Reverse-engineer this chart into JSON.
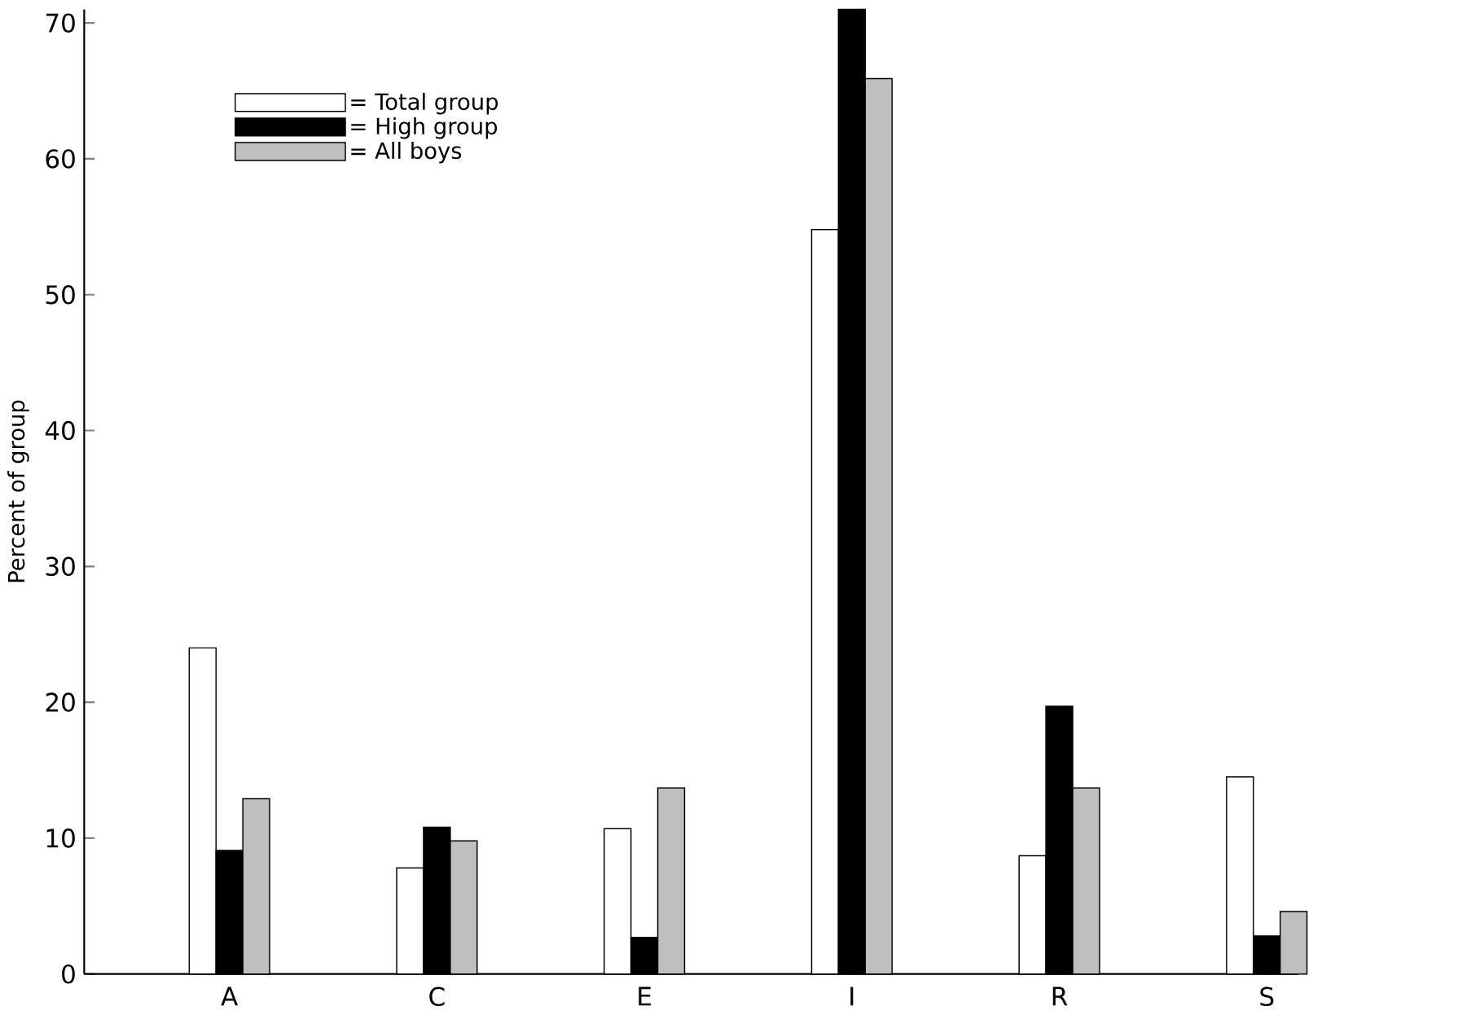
{
  "chart_data": {
    "type": "bar",
    "ylabel": "Percent of group",
    "categories": [
      "A",
      "C",
      "E",
      "I",
      "R",
      "S"
    ],
    "series": [
      {
        "name": "= Total group",
        "color": "#ffffff",
        "values": [
          24,
          7.8,
          10.7,
          54.8,
          8.7,
          14.5
        ]
      },
      {
        "name": "= High group",
        "color": "#000000",
        "values": [
          9.1,
          10.8,
          2.7,
          71,
          19.7,
          2.8
        ]
      },
      {
        "name": "= All boys",
        "color": "#bfbfbf",
        "values": [
          12.9,
          9.8,
          13.7,
          65.9,
          13.7,
          4.6
        ]
      }
    ],
    "ylim": [
      0,
      71
    ],
    "yticks": [
      0,
      10,
      20,
      30,
      40,
      50,
      60,
      70
    ],
    "grid": false,
    "legend": "top left"
  }
}
